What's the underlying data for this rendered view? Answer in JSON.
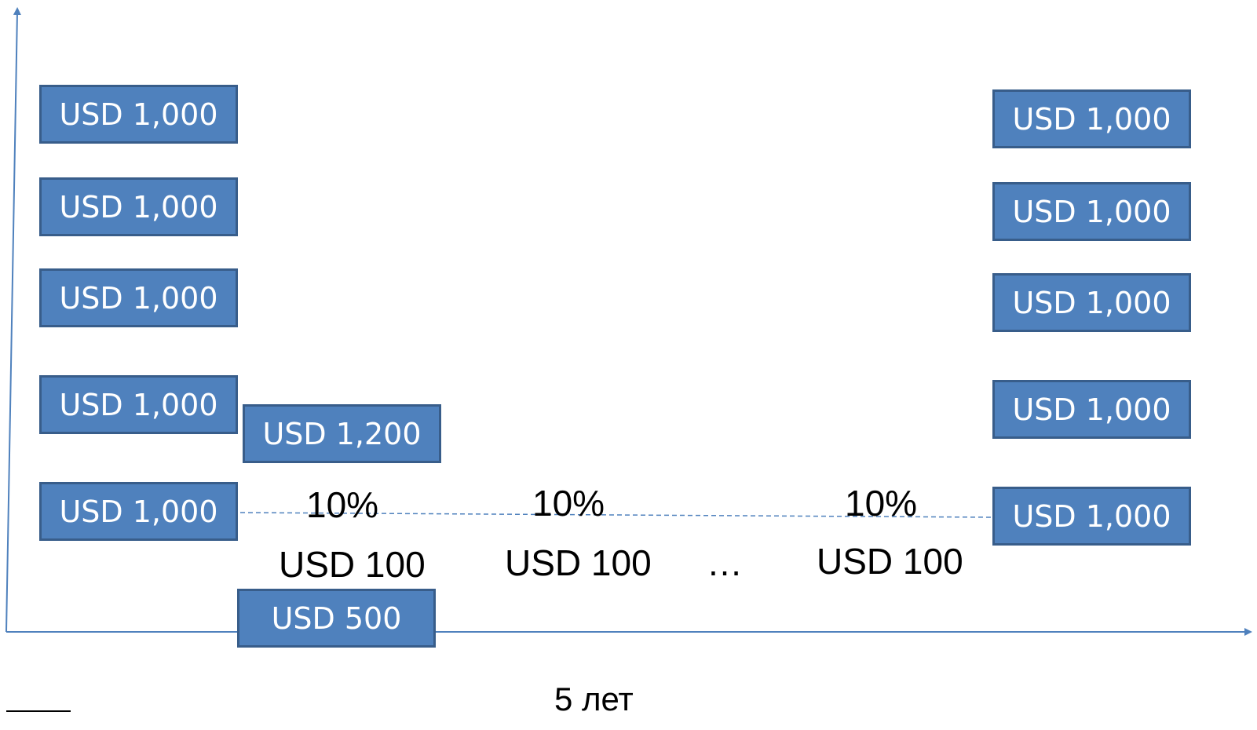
{
  "colors": {
    "box_fill": "#4f81bd",
    "box_border": "#385d8a",
    "axis": "#4f81bd",
    "text": "#000000"
  },
  "left_column": [
    "USD 1,000",
    "USD 1,000",
    "USD 1,000",
    "USD 1,000",
    "USD 1,000"
  ],
  "right_column": [
    "USD 1,000",
    "USD 1,000",
    "USD 1,000",
    "USD 1,000",
    "USD 1,000"
  ],
  "upfront_box": "USD 1,200",
  "bottom_box": "USD 500",
  "rates": [
    "10%",
    "10%",
    "10%"
  ],
  "coupons": [
    "USD 100",
    "USD 100",
    "USD 100"
  ],
  "ellipsis": "…",
  "time_label": "5 лет"
}
